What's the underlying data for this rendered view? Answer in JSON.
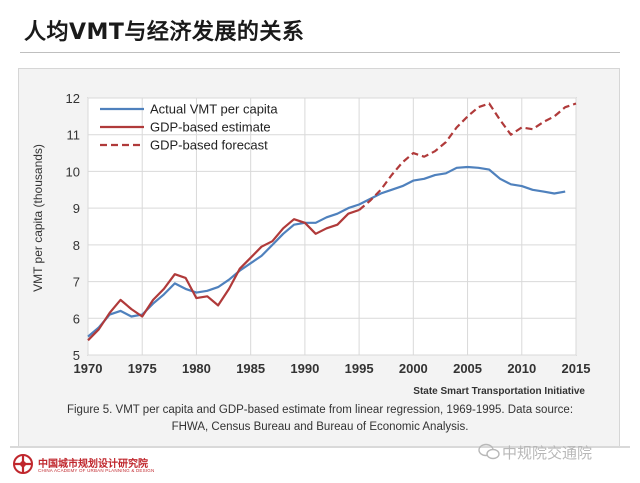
{
  "slide": {
    "title": "人均VMT与经济发展的关系"
  },
  "chart_data": {
    "type": "line",
    "title": "",
    "xlabel": "",
    "ylabel": "VMT per capita (thousands)",
    "xlim": [
      1970,
      2015
    ],
    "ylim": [
      5,
      12
    ],
    "x_ticks": [
      1970,
      1975,
      1980,
      1985,
      1990,
      1995,
      2000,
      2005,
      2010,
      2015
    ],
    "y_ticks": [
      5,
      6,
      7,
      8,
      9,
      10,
      11,
      12
    ],
    "grid": true,
    "legend_position": "top-left",
    "source_note": "State Smart Transportation Initiative",
    "series": [
      {
        "name": "Actual VMT per capita",
        "style": "solid",
        "color": "#4f81bd",
        "points": [
          [
            1970,
            5.5
          ],
          [
            1971,
            5.75
          ],
          [
            1972,
            6.1
          ],
          [
            1973,
            6.2
          ],
          [
            1974,
            6.05
          ],
          [
            1975,
            6.1
          ],
          [
            1976,
            6.4
          ],
          [
            1977,
            6.65
          ],
          [
            1978,
            6.95
          ],
          [
            1979,
            6.8
          ],
          [
            1980,
            6.7
          ],
          [
            1981,
            6.75
          ],
          [
            1982,
            6.85
          ],
          [
            1983,
            7.05
          ],
          [
            1984,
            7.3
          ],
          [
            1985,
            7.5
          ],
          [
            1986,
            7.7
          ],
          [
            1987,
            8.0
          ],
          [
            1988,
            8.3
          ],
          [
            1989,
            8.55
          ],
          [
            1990,
            8.6
          ],
          [
            1991,
            8.6
          ],
          [
            1992,
            8.75
          ],
          [
            1993,
            8.85
          ],
          [
            1994,
            9.0
          ],
          [
            1995,
            9.1
          ],
          [
            1996,
            9.25
          ],
          [
            1997,
            9.4
          ],
          [
            1998,
            9.5
          ],
          [
            1999,
            9.6
          ],
          [
            2000,
            9.75
          ],
          [
            2001,
            9.8
          ],
          [
            2002,
            9.9
          ],
          [
            2003,
            9.95
          ],
          [
            2004,
            10.1
          ],
          [
            2005,
            10.12
          ],
          [
            2006,
            10.1
          ],
          [
            2007,
            10.05
          ],
          [
            2008,
            9.8
          ],
          [
            2009,
            9.65
          ],
          [
            2010,
            9.6
          ],
          [
            2011,
            9.5
          ],
          [
            2012,
            9.45
          ],
          [
            2013,
            9.4
          ],
          [
            2014,
            9.45
          ]
        ]
      },
      {
        "name": "GDP-based estimate",
        "style": "solid",
        "color": "#b03a3a",
        "points": [
          [
            1970,
            5.4
          ],
          [
            1971,
            5.7
          ],
          [
            1972,
            6.15
          ],
          [
            1973,
            6.5
          ],
          [
            1974,
            6.25
          ],
          [
            1975,
            6.05
          ],
          [
            1976,
            6.5
          ],
          [
            1977,
            6.8
          ],
          [
            1978,
            7.2
          ],
          [
            1979,
            7.1
          ],
          [
            1980,
            6.55
          ],
          [
            1981,
            6.6
          ],
          [
            1982,
            6.35
          ],
          [
            1983,
            6.8
          ],
          [
            1984,
            7.35
          ],
          [
            1985,
            7.65
          ],
          [
            1986,
            7.95
          ],
          [
            1987,
            8.1
          ],
          [
            1988,
            8.45
          ],
          [
            1989,
            8.7
          ],
          [
            1990,
            8.6
          ],
          [
            1991,
            8.3
          ],
          [
            1992,
            8.45
          ],
          [
            1993,
            8.55
          ],
          [
            1994,
            8.85
          ],
          [
            1995,
            8.95
          ]
        ]
      },
      {
        "name": "GDP-based forecast",
        "style": "dashed",
        "color": "#b03a3a",
        "points": [
          [
            1995,
            8.95
          ],
          [
            1996,
            9.2
          ],
          [
            1997,
            9.5
          ],
          [
            1998,
            9.9
          ],
          [
            1999,
            10.25
          ],
          [
            2000,
            10.5
          ],
          [
            2001,
            10.4
          ],
          [
            2002,
            10.55
          ],
          [
            2003,
            10.8
          ],
          [
            2004,
            11.2
          ],
          [
            2005,
            11.5
          ],
          [
            2006,
            11.75
          ],
          [
            2007,
            11.85
          ],
          [
            2008,
            11.4
          ],
          [
            2009,
            11.0
          ],
          [
            2010,
            11.2
          ],
          [
            2011,
            11.15
          ],
          [
            2012,
            11.35
          ],
          [
            2013,
            11.5
          ],
          [
            2014,
            11.75
          ],
          [
            2015,
            11.85
          ]
        ]
      }
    ]
  },
  "caption": {
    "line1": "Figure 5. VMT per capita and GDP-based estimate from linear regression, 1969-1995. Data source:",
    "line2": "FHWA, Census Bureau and Bureau of Economic Analysis."
  },
  "footer": {
    "logo_text": "中国城市规划设计研究院",
    "logo_subtext": "CHINA ACADEMY OF URBAN PLANNING & DESIGN",
    "watermark_text": "中规院交通院",
    "logo_icon": "cross-knot-logo",
    "watermark_icon": "wechat-icon"
  }
}
